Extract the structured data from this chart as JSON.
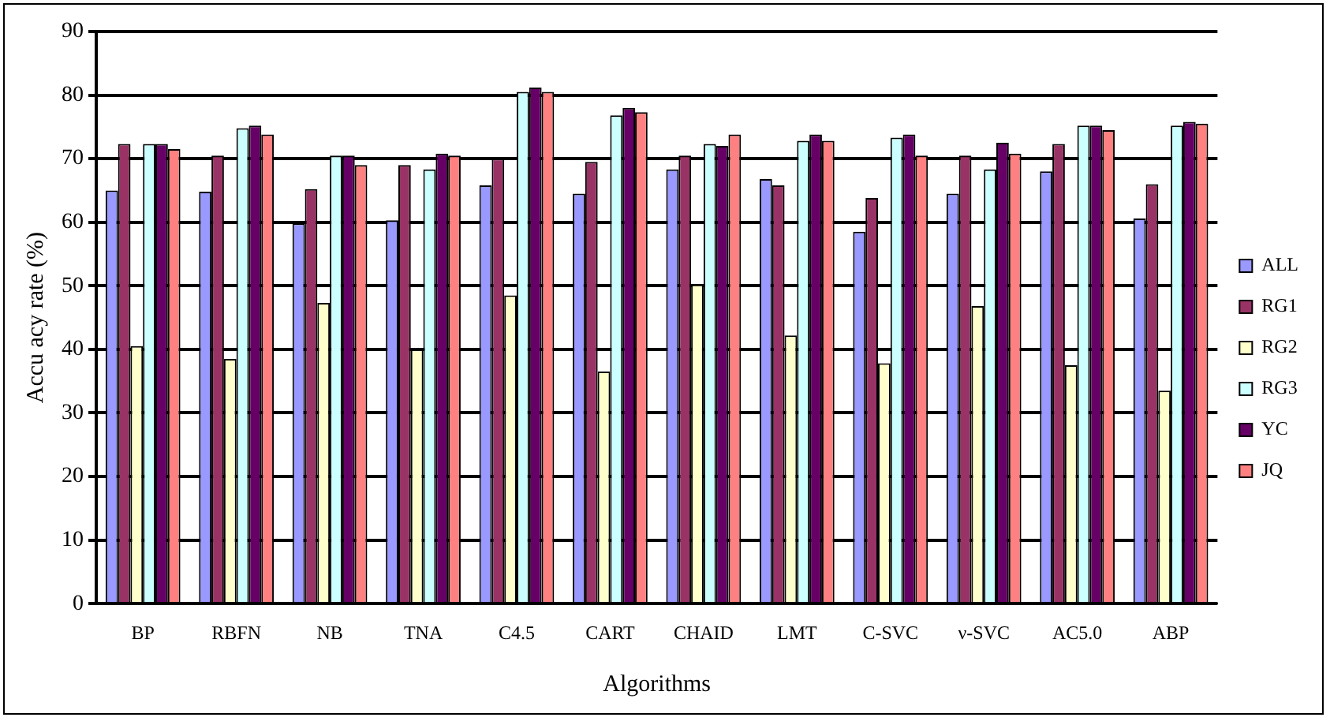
{
  "chart_data": {
    "type": "bar",
    "xlabel": "Algorithms",
    "ylabel": "Accu acy rate (%)",
    "categories": [
      "BP",
      "RBFN",
      "NB",
      "TNA",
      "C4.5",
      "CART",
      "CHAID",
      "LMT",
      "C-SVC",
      "ν-SVC",
      "AC5.0",
      "ABP"
    ],
    "series": [
      {
        "name": "ALL",
        "color": "#9999ff",
        "values": [
          65,
          64.8,
          59.8,
          60.3,
          65.8,
          64.5,
          68.3,
          66.8,
          58.5,
          64.5,
          68,
          60.6
        ]
      },
      {
        "name": "RG1",
        "color": "#993366",
        "values": [
          72.3,
          70.5,
          65.2,
          69,
          70,
          69.5,
          70.5,
          65.8,
          63.8,
          70.5,
          72.3,
          66
        ]
      },
      {
        "name": "RG2",
        "color": "#ffffcc",
        "values": [
          40.5,
          38.5,
          47.3,
          40,
          48.5,
          36.5,
          50.2,
          42.2,
          37.8,
          46.8,
          37.5,
          33.5
        ]
      },
      {
        "name": "RG3",
        "color": "#ccffff",
        "values": [
          72.3,
          74.8,
          70.5,
          68.3,
          80.5,
          76.8,
          72.3,
          72.8,
          73.3,
          68.3,
          75.2,
          75.2
        ]
      },
      {
        "name": "YC",
        "color": "#660066",
        "values": [
          72.3,
          75.2,
          70.5,
          70.8,
          81.2,
          78,
          72,
          73.8,
          73.8,
          72.5,
          75.2,
          75.8
        ]
      },
      {
        "name": "JQ",
        "color": "#ff8080",
        "values": [
          71.5,
          73.8,
          69,
          70.5,
          80.5,
          77.3,
          73.8,
          72.8,
          70.5,
          70.8,
          74.5,
          75.5
        ]
      }
    ],
    "ylim": [
      0,
      90
    ],
    "yticks": [
      0,
      10,
      20,
      30,
      40,
      50,
      60,
      70,
      80,
      90
    ],
    "grid": "y",
    "legend": "right"
  }
}
